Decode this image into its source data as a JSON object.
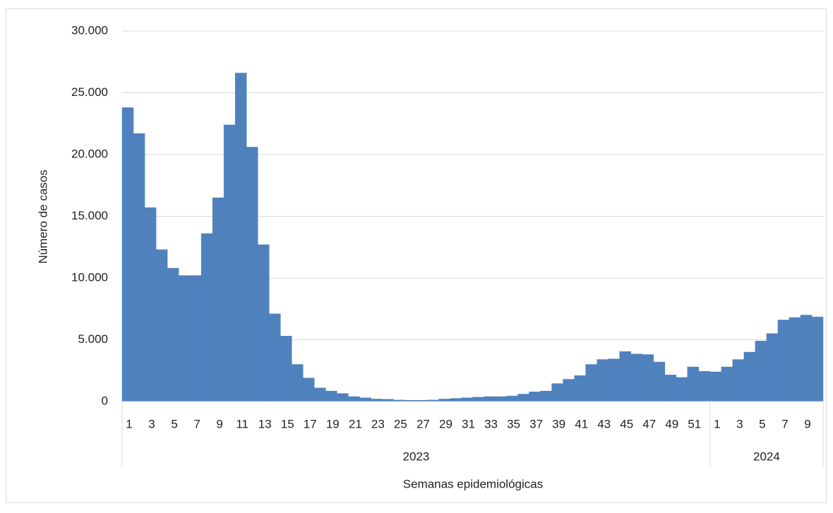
{
  "chart_data": {
    "type": "bar",
    "color": "#4f81bd",
    "y_label": "Número de casos",
    "x_label": "Semanas epidemiológicas",
    "ylim": [
      0,
      30000
    ],
    "yticks": [
      0,
      {
        "value": 5000,
        "label": "5.000"
      },
      {
        "value": 10000,
        "label": "10.000"
      },
      {
        "value": 15000,
        "label": "15.000"
      },
      {
        "value": 20000,
        "label": "20.000"
      },
      {
        "value": 25000,
        "label": "25.000"
      },
      {
        "value": 30000,
        "label": "30.000"
      }
    ],
    "grid": true,
    "groups": [
      {
        "name": "2023",
        "categories": [
          "1",
          null,
          "3",
          null,
          "5",
          null,
          "7",
          null,
          "9",
          null,
          "11",
          null,
          "13",
          null,
          "15",
          null,
          "17",
          null,
          "19",
          null,
          "21",
          null,
          "23",
          null,
          "25",
          null,
          "27",
          null,
          "29",
          null,
          "31",
          null,
          "33",
          null,
          "35",
          null,
          "37",
          null,
          "39",
          null,
          "41",
          null,
          "43",
          null,
          "45",
          null,
          "47",
          null,
          "49",
          null,
          "51",
          null
        ],
        "values": [
          23800,
          21700,
          15700,
          12300,
          10800,
          10200,
          10200,
          13600,
          16500,
          22400,
          26600,
          20600,
          12700,
          7100,
          5300,
          3000,
          1900,
          1100,
          850,
          650,
          400,
          300,
          200,
          180,
          120,
          100,
          100,
          120,
          200,
          250,
          300,
          350,
          400,
          400,
          450,
          600,
          780,
          850,
          1450,
          1800,
          2100,
          3000,
          3400,
          3450,
          4050,
          3850,
          3800,
          3200,
          2150,
          1950,
          2800,
          2450
        ]
      },
      {
        "name": "2024",
        "categories": [
          "1",
          null,
          "3",
          null,
          "5",
          null,
          "7",
          null,
          "9",
          null
        ],
        "values": [
          2400,
          2800,
          3400,
          4000,
          4900,
          5500,
          6600,
          6800,
          7000,
          6850
        ]
      }
    ]
  }
}
